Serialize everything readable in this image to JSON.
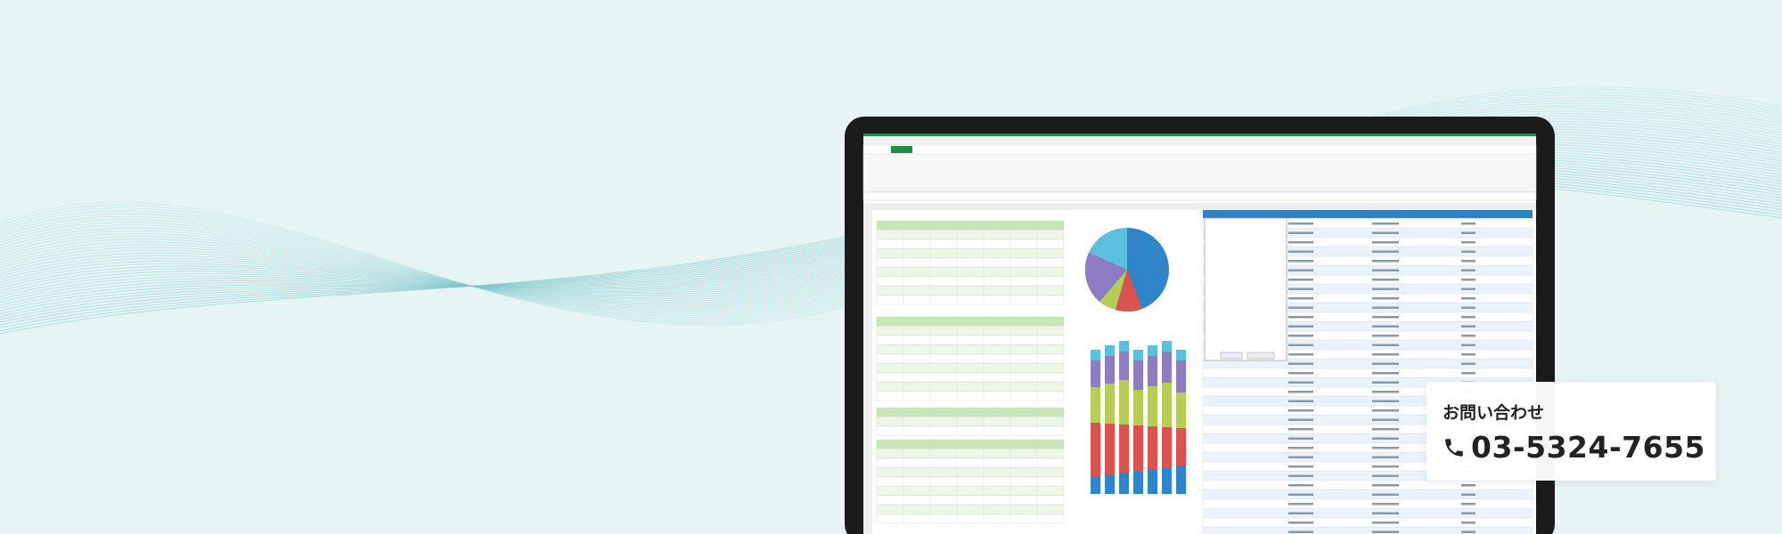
{
  "contact": {
    "label": "お問い合わせ",
    "phone": "03-5324-7655"
  }
}
